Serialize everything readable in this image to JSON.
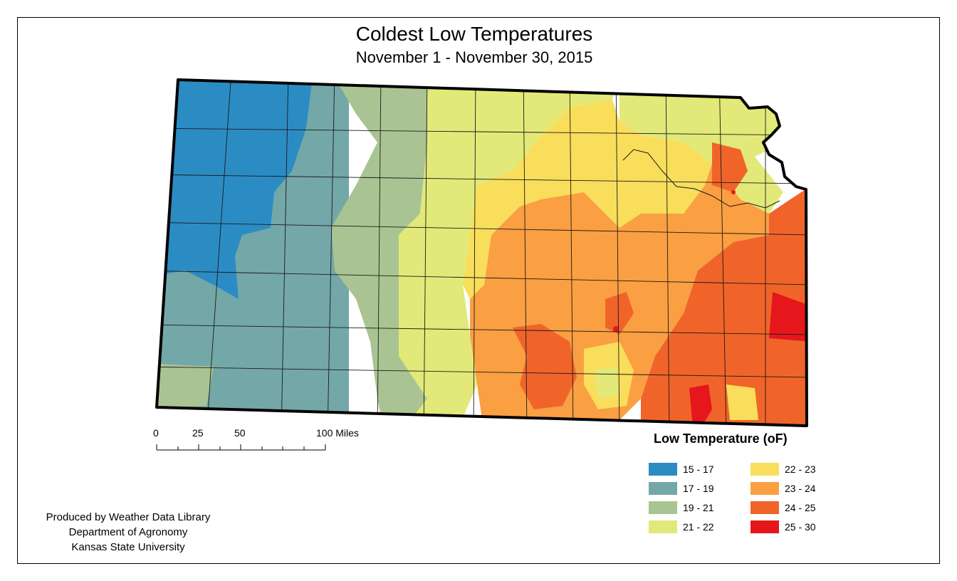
{
  "map": {
    "title": "Coldest Low Temperatures",
    "subtitle": "November 1 - November 30, 2015"
  },
  "scale_bar": {
    "labels": [
      "0",
      "25",
      "50",
      "100 Miles"
    ]
  },
  "legend": {
    "title": "Low Temperature (oF)",
    "items": [
      {
        "label": "15 - 17",
        "color": "#2b8cc4"
      },
      {
        "label": "17 - 19",
        "color": "#74a7a8"
      },
      {
        "label": "19 - 21",
        "color": "#a9c492"
      },
      {
        "label": "21 - 22",
        "color": "#e2e979"
      },
      {
        "label": "22 - 23",
        "color": "#f8de5b"
      },
      {
        "label": "23 - 24",
        "color": "#fa9f42"
      },
      {
        "label": "24 - 25",
        "color": "#f0642a"
      },
      {
        "label": "25 - 30",
        "color": "#e5171c"
      }
    ]
  },
  "credits": {
    "line1": "Produced by Weather Data Library",
    "line2": "Department of Agronomy",
    "line3": "Kansas State University"
  }
}
